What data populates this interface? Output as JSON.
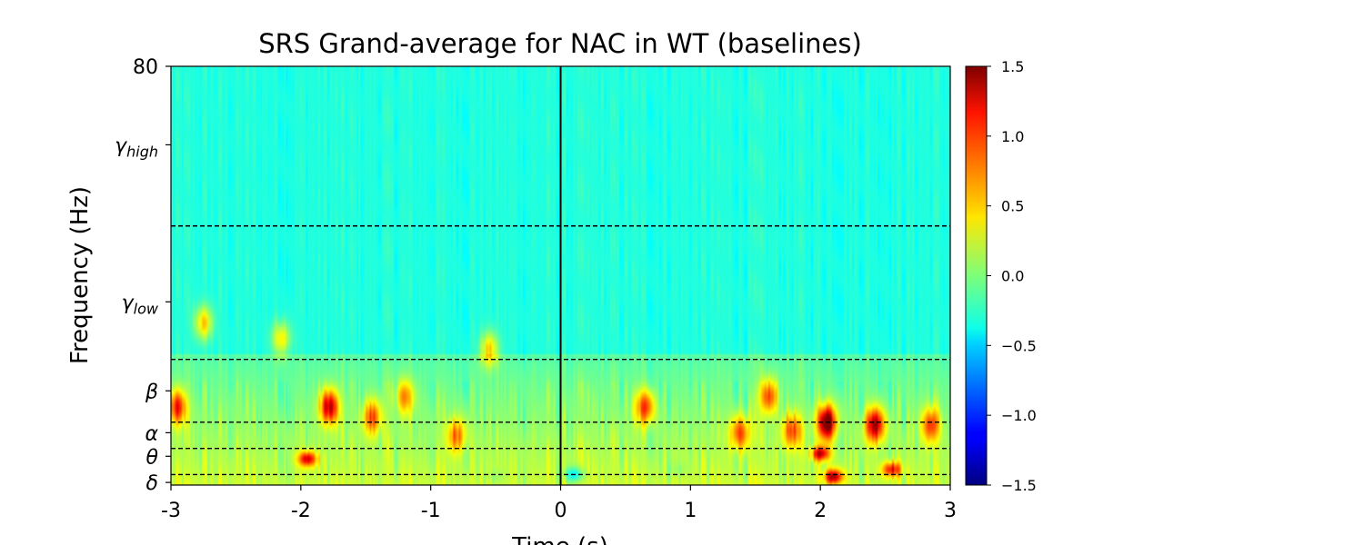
{
  "chart_data": {
    "type": "heatmap",
    "title": "SRS Grand-average for NAC in WT (baselines)",
    "xlabel": "Time (s)",
    "ylabel": "Frequency (Hz)",
    "xlim": [
      -3,
      3
    ],
    "ylim": [
      0,
      80
    ],
    "x_ticks": [
      {
        "value": -3,
        "label": "-3"
      },
      {
        "value": -2,
        "label": "-2"
      },
      {
        "value": -1,
        "label": "-1"
      },
      {
        "value": 0,
        "label": "0"
      },
      {
        "value": 1,
        "label": "1"
      },
      {
        "value": 2,
        "label": "2"
      },
      {
        "value": 3,
        "label": "3"
      }
    ],
    "y_ticks": [
      {
        "value": 0.5,
        "label": "δ",
        "sub": ""
      },
      {
        "value": 5.5,
        "label": "θ",
        "sub": ""
      },
      {
        "value": 10,
        "label": "α",
        "sub": ""
      },
      {
        "value": 18,
        "label": "β",
        "sub": ""
      },
      {
        "value": 35,
        "label": "γ",
        "sub": "low"
      },
      {
        "value": 65,
        "label": "γ",
        "sub": "high"
      },
      {
        "value": 80,
        "label": "80",
        "sub": ""
      }
    ],
    "band_boundaries_hz": [
      2,
      7,
      12,
      24,
      49.5
    ],
    "event_time_s": 0,
    "colorbar": {
      "colormap": "jet",
      "range": [
        -1.5,
        1.5
      ],
      "ticks": [
        {
          "value": 1.5,
          "label": "1.5"
        },
        {
          "value": 1.0,
          "label": "1.0"
        },
        {
          "value": 0.5,
          "label": "0.5"
        },
        {
          "value": 0.0,
          "label": "0.0"
        },
        {
          "value": -0.5,
          "label": "−0.5"
        },
        {
          "value": -1.0,
          "label": "−1.0"
        },
        {
          "value": -1.5,
          "label": "−1.5"
        }
      ]
    },
    "baseline_value": -0.28,
    "hotspots": [
      {
        "t": 2.05,
        "f": 12.0,
        "value": 1.45
      },
      {
        "t": 2.42,
        "f": 11.5,
        "value": 1.15
      },
      {
        "t": -1.78,
        "f": 15.0,
        "value": 1.05
      },
      {
        "t": 2.1,
        "f": 1.6,
        "value": 1.0
      },
      {
        "t": 2.0,
        "f": 6.0,
        "value": 0.9
      },
      {
        "t": 2.55,
        "f": 3.0,
        "value": 0.75
      },
      {
        "t": -1.95,
        "f": 5.0,
        "value": 0.85
      },
      {
        "t": -2.95,
        "f": 15.0,
        "value": 0.75
      },
      {
        "t": 0.65,
        "f": 15.0,
        "value": 0.7
      },
      {
        "t": 1.6,
        "f": 17.0,
        "value": 0.65
      },
      {
        "t": 1.38,
        "f": 10.0,
        "value": 0.6
      },
      {
        "t": 1.78,
        "f": 10.5,
        "value": 0.6
      },
      {
        "t": 2.85,
        "f": 11.5,
        "value": 0.65
      },
      {
        "t": -1.45,
        "f": 13.0,
        "value": 0.6
      },
      {
        "t": -0.55,
        "f": 26.0,
        "value": 0.5
      },
      {
        "t": -2.75,
        "f": 31.0,
        "value": 0.5
      },
      {
        "t": -2.15,
        "f": 28.0,
        "value": 0.45
      },
      {
        "t": -1.2,
        "f": 17.0,
        "value": 0.45
      },
      {
        "t": -0.8,
        "f": 9.5,
        "value": 0.5
      },
      {
        "t": 0.1,
        "f": 2.0,
        "value": -0.85
      },
      {
        "t": -0.5,
        "f": 1.5,
        "value": -0.4
      },
      {
        "t": 0.9,
        "f": 3.0,
        "value": -0.4
      }
    ]
  }
}
